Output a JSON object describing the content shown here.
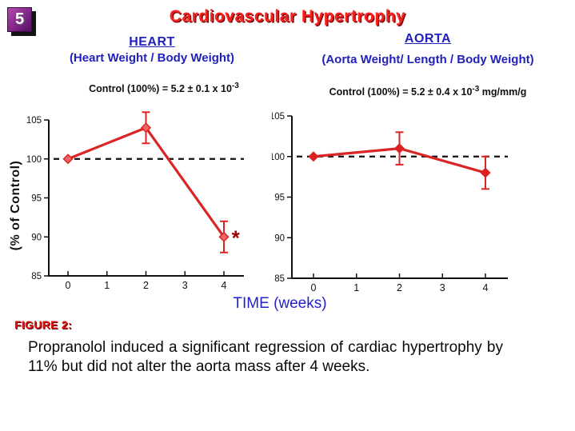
{
  "slide": {
    "number": "5",
    "title": "Cardiovascular Hypertrophy",
    "y_axis_title": "(% of Control)",
    "x_axis_title": "TIME (weeks)",
    "figure_label": "FIGURE 2:",
    "caption": "Propranolol induced a significant regression of cardiac hypertrophy by 11% but did not alter the aorta mass after 4 weeks."
  },
  "colors": {
    "title_red": "#ff1e1e",
    "heading_blue": "#2121bd",
    "axis_black": "#111111",
    "asterisk_red": "#990000",
    "badge_purple": "#8a2d8f"
  },
  "chart_data": [
    {
      "type": "line",
      "title": "HEART",
      "subtitle": "(Heart Weight / Body Weight)",
      "control_note": {
        "prefix": "Control (100%) = 5.2 ± 0.1 x 10",
        "exponent": "-3",
        "suffix": ""
      },
      "x": [
        0,
        2,
        4
      ],
      "y": [
        100,
        104,
        90
      ],
      "yerr": [
        0,
        2,
        2
      ],
      "xticks": [
        0,
        1,
        2,
        3,
        4
      ],
      "yticks": [
        85,
        90,
        95,
        100,
        105
      ],
      "ylim": [
        85,
        105
      ],
      "xlabel": "TIME (weeks)",
      "ylabel": "(% of Control)",
      "reference_line": 100,
      "line_color": "#db2424",
      "marker_color": "#ee6664",
      "annotation": {
        "text": "*",
        "x": 4.3,
        "y": 90
      },
      "grid": false,
      "legend": "none"
    },
    {
      "type": "line",
      "title": "AORTA",
      "subtitle": "(Aorta Weight/ Length / Body Weight)",
      "control_note": {
        "prefix": "Control (100%) = 5.2 ± 0.4 x 10",
        "exponent": "-3",
        "suffix": " mg/mm/g"
      },
      "x": [
        0,
        2,
        4
      ],
      "y": [
        100,
        101,
        98
      ],
      "yerr": [
        0,
        2,
        2
      ],
      "xticks": [
        0,
        1,
        2,
        3,
        4
      ],
      "yticks": [
        85,
        90,
        95,
        100,
        105
      ],
      "ylim": [
        85,
        105
      ],
      "xlabel": "TIME (weeks)",
      "ylabel": "(% of Control)",
      "reference_line": 100,
      "line_color": "#db2424",
      "marker_color": "#e02020",
      "annotation": null,
      "grid": false,
      "legend": "none"
    }
  ]
}
